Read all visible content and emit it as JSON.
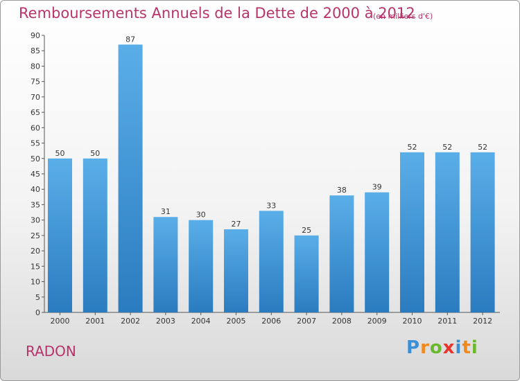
{
  "title": "Remboursements Annuels de la Dette de 2000 à 2012",
  "subtitle": "(en milliers d'€)",
  "city": "RADON",
  "logo": "Proxiti",
  "colors": {
    "title": "#b8336a",
    "bar_light": "#5aaee8",
    "bar_dark": "#2a7cc0",
    "axis": "#555555"
  },
  "chart_data": {
    "type": "bar",
    "title": "Remboursements Annuels de la Dette de 2000 à 2012",
    "subtitle": "(en milliers d'€)",
    "xlabel": "",
    "ylabel": "",
    "categories": [
      "2000",
      "2001",
      "2002",
      "2003",
      "2004",
      "2005",
      "2006",
      "2007",
      "2008",
      "2009",
      "2010",
      "2011",
      "2012"
    ],
    "values": [
      50,
      50,
      87,
      31,
      30,
      27,
      33,
      25,
      38,
      39,
      52,
      52,
      52
    ],
    "ylim": [
      0,
      90
    ],
    "yticks": [
      0,
      5,
      10,
      15,
      20,
      25,
      30,
      35,
      40,
      45,
      50,
      55,
      60,
      65,
      70,
      75,
      80,
      85,
      90
    ],
    "grid": false,
    "data_labels": true
  }
}
